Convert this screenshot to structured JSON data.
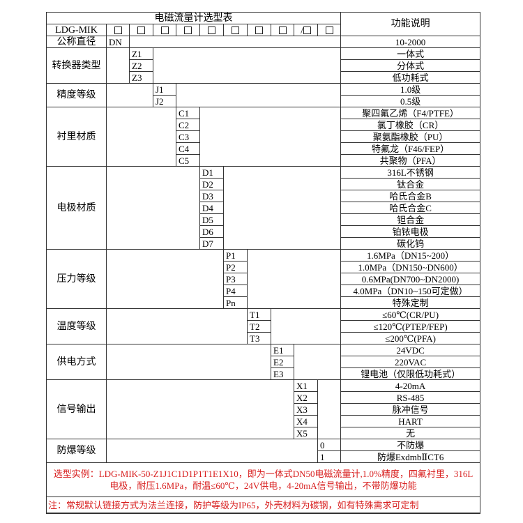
{
  "title": "电磁流量计选型表",
  "function_header": "功能说明",
  "model": "LDG-MIK",
  "header_boxes": [
    "□",
    "□",
    "□",
    "□",
    "□",
    "□",
    "□",
    "□",
    "/□",
    "□"
  ],
  "dn": {
    "label": "公称直径",
    "code": "DN",
    "function": "10-2000"
  },
  "sections": [
    {
      "label": "转换器类型",
      "codes": [
        "Z1",
        "Z2",
        "Z3"
      ],
      "functions": [
        "一体式",
        "分体式",
        "低功耗式"
      ]
    },
    {
      "label": "精度等级",
      "codes": [
        "J1",
        "J2"
      ],
      "functions": [
        "1.0级",
        "0.5级"
      ]
    },
    {
      "label": "衬里材质",
      "codes": [
        "C1",
        "C2",
        "C3",
        "C4",
        "C5"
      ],
      "functions": [
        "聚四氟乙烯（F4/PTFE）",
        "氯丁橡胶（CR）",
        "聚氨酯橡胶（PU）",
        "特氟龙（F46/FEP）",
        "共聚物（PFA）"
      ]
    },
    {
      "label": "电极材质",
      "codes": [
        "D1",
        "D2",
        "D3",
        "D4",
        "D5",
        "D6",
        "D7"
      ],
      "functions": [
        "316L不锈钢",
        "钛合金",
        "哈氏合金B",
        "哈氏合金C",
        "钽合金",
        "铂铱电极",
        "碳化钨"
      ]
    },
    {
      "label": "压力等级",
      "codes": [
        "P1",
        "P2",
        "P3",
        "P4",
        "Pn"
      ],
      "functions": [
        "1.6MPa（DN15~200）",
        "1.0MPa（DN150~DN600）",
        "0.6MPa(DN700~DN2000)",
        "4.0MPa（DN10~150可定做）",
        "特殊定制"
      ]
    },
    {
      "label": "温度等级",
      "codes": [
        "T1",
        "T2",
        "T3"
      ],
      "functions": [
        "≤60℃(CR/PU)",
        "≤120℃(PTEP/FEP)",
        "≤200℃(PFA)"
      ]
    },
    {
      "label": "供电方式",
      "codes": [
        "E1",
        "E2",
        "E3"
      ],
      "functions": [
        "24VDC",
        "220VAC",
        "锂电池（仅限低功耗式）"
      ]
    },
    {
      "label": "信号输出",
      "codes": [
        "X1",
        "X2",
        "X3",
        "X4",
        "X5"
      ],
      "functions": [
        "4-20mA",
        "RS-485",
        "脉冲信号",
        "HART",
        "无"
      ]
    },
    {
      "label": "防爆等级",
      "codes": [
        "0",
        "1"
      ],
      "functions": [
        "不防爆",
        "防爆ExdmbⅡCT6"
      ]
    }
  ],
  "example": "选型实例：LDG-MIK-50-Z1J1C1D1P1T1E1X10，即为一体式DN50电磁流量计,1.0%精度，四氟衬里，316L电极，耐压1.6MPa，耐温≤60℃，24V供电，4-20mA信号输出，不带防爆功能",
  "note": "注：常规默认链接方式为法兰连接，防护等级为IP65，外壳材料为碳钢，如有特殊需求可定制",
  "colors": {
    "text": "#000000",
    "highlight": "#d81e1e",
    "border": "#333333"
  }
}
